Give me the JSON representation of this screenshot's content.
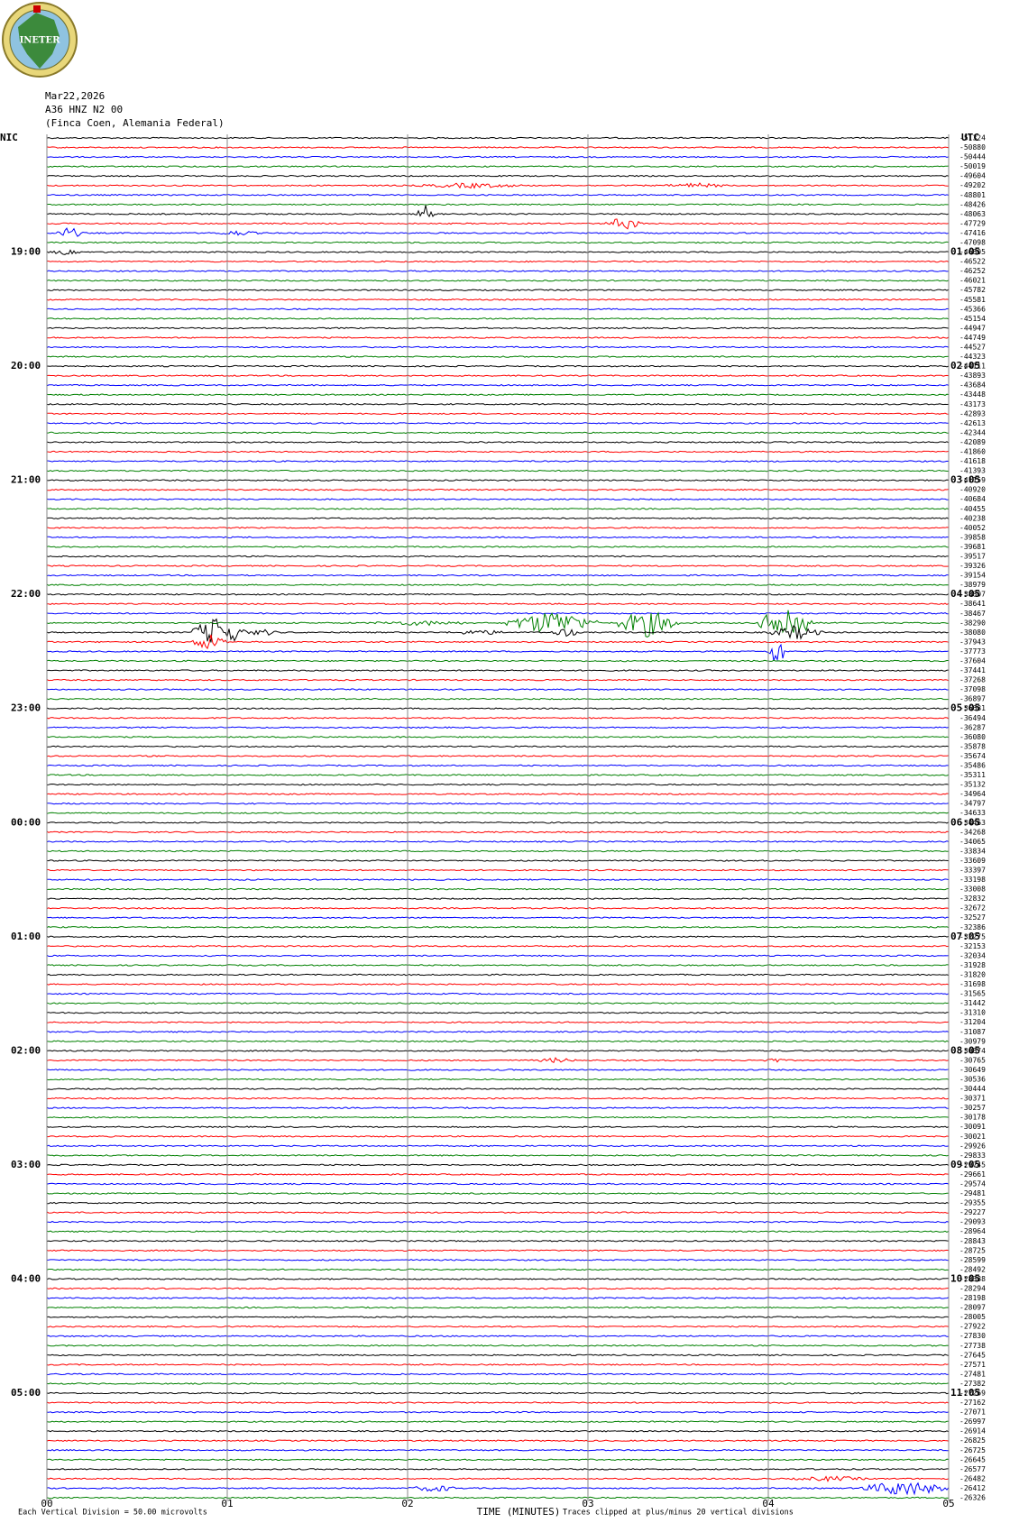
{
  "header": {
    "logo": "INETER",
    "date": "Mar22,2026",
    "station": "A36 HNZ N2 00",
    "location": "(Finca Coen, Alemania Federal)",
    "left_zone": "NIC",
    "right_zone": "UTC"
  },
  "hours": [
    {
      "local": "19:00",
      "utc": "01:05"
    },
    {
      "local": "20:00",
      "utc": "02:05"
    },
    {
      "local": "21:00",
      "utc": "03:05"
    },
    {
      "local": "22:00",
      "utc": "04:05"
    },
    {
      "local": "23:00",
      "utc": "05:05"
    },
    {
      "local": "00:00",
      "utc": "06:05"
    },
    {
      "local": "01:00",
      "utc": "07:05"
    },
    {
      "local": "02:00",
      "utc": "08:05"
    },
    {
      "local": "03:00",
      "utc": "09:05"
    },
    {
      "local": "04:00",
      "utc": "10:05"
    },
    {
      "local": "05:00",
      "utc": "11:05"
    }
  ],
  "trace_offsets": [
    "-51324",
    "-50880",
    "-50444",
    "-50019",
    "-49604",
    "-49202",
    "-48801",
    "-48426",
    "-48063",
    "-47729",
    "-47416",
    "-47098",
    "-46805",
    "-46522",
    "-46252",
    "-46021",
    "-45782",
    "-45581",
    "-45366",
    "-45154",
    "-44947",
    "-44749",
    "-44527",
    "-44323",
    "-44111",
    "-43893",
    "-43684",
    "-43448",
    "-43173",
    "-42893",
    "-42613",
    "-42344",
    "-42089",
    "-41860",
    "-41618",
    "-41393",
    "-41159",
    "-40920",
    "-40684",
    "-40455",
    "-40238",
    "-40052",
    "-39858",
    "-39681",
    "-39517",
    "-39326",
    "-39154",
    "-38979",
    "-38807",
    "-38641",
    "-38467",
    "-38290",
    "-38080",
    "-37943",
    "-37773",
    "-37604",
    "-37441",
    "-37268",
    "-37098",
    "-36897",
    "-36681",
    "-36494",
    "-36287",
    "-36080",
    "-35878",
    "-35674",
    "-35486",
    "-35311",
    "-35132",
    "-34964",
    "-34797",
    "-34633",
    "-34463",
    "-34268",
    "-34065",
    "-33834",
    "-33609",
    "-33397",
    "-33198",
    "-33008",
    "-32832",
    "-32672",
    "-32527",
    "-32386",
    "-32275",
    "-32153",
    "-32034",
    "-31928",
    "-31820",
    "-31698",
    "-31565",
    "-31442",
    "-31310",
    "-31204",
    "-31087",
    "-30979",
    "-30874",
    "-30765",
    "-30649",
    "-30536",
    "-30444",
    "-30371",
    "-30257",
    "-30178",
    "-30091",
    "-30021",
    "-29926",
    "-29833",
    "-29745",
    "-29661",
    "-29574",
    "-29481",
    "-29355",
    "-29227",
    "-29093",
    "-28964",
    "-28843",
    "-28725",
    "-28599",
    "-28492",
    "-28388",
    "-28294",
    "-28198",
    "-28097",
    "-28005",
    "-27922",
    "-27830",
    "-27738",
    "-27645",
    "-27571",
    "-27481",
    "-27382",
    "-27269",
    "-27162",
    "-27071",
    "-26997",
    "-26914",
    "-26825",
    "-26725",
    "-26645",
    "-26577",
    "-26482",
    "-26412",
    "-26326"
  ],
  "plot": {
    "xlim": [
      0,
      5
    ],
    "xticks": [
      {
        "value": 0,
        "label": "00"
      },
      {
        "value": 1,
        "label": "01"
      },
      {
        "value": 2,
        "label": "02"
      },
      {
        "value": 3,
        "label": "03"
      },
      {
        "value": 4,
        "label": "04"
      },
      {
        "value": 5,
        "label": "05"
      }
    ],
    "trace_colors": [
      "#000000",
      "#ff0000",
      "#0000ff",
      "#008000"
    ],
    "xlabel": "TIME (MINUTES)"
  },
  "footer": {
    "scale": "Each Vertical Division =   50.00 microvolts",
    "clip": "Traces clipped at plus/minus 20 vertical divisions"
  }
}
